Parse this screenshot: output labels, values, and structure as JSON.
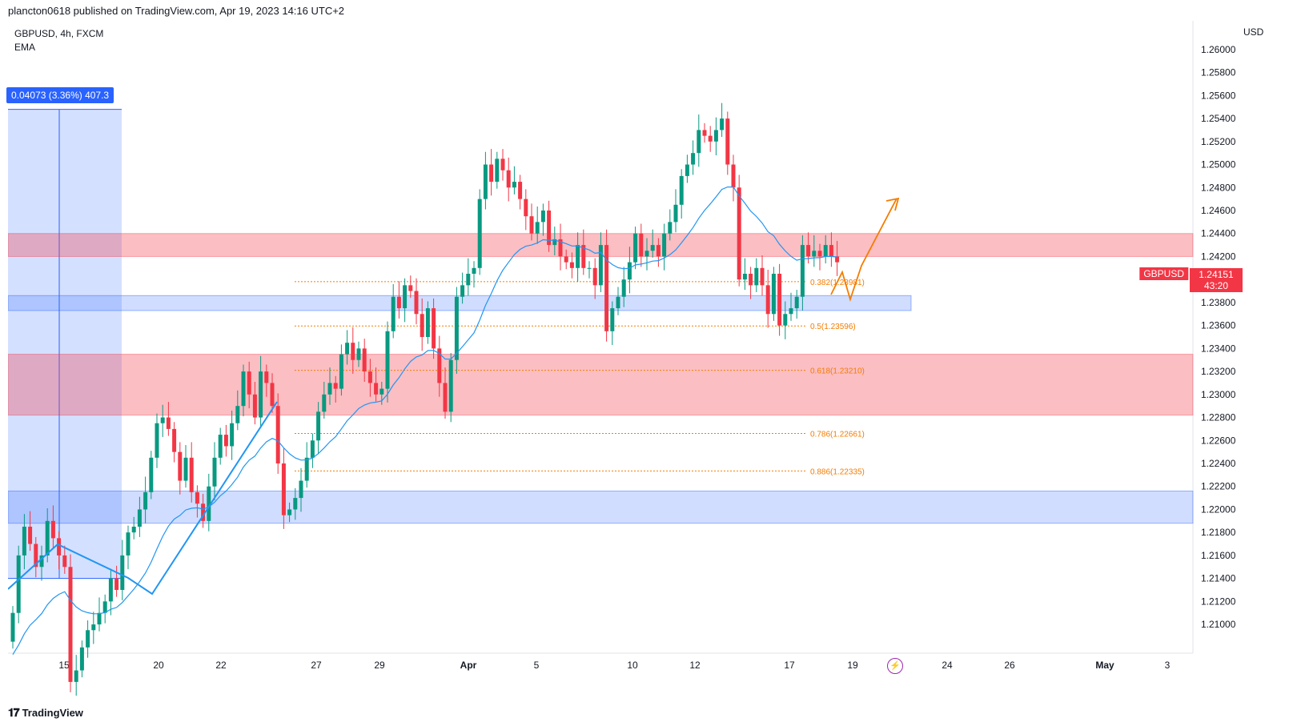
{
  "header": {
    "published_text": "plancton0618 published on TradingView.com, Apr 19, 2023 14:16 UTC+2"
  },
  "symbol": {
    "line1": "GBPUSD, 4h, FXCM",
    "line2": "EMA"
  },
  "measure": {
    "label": "0.04073 (3.36%) 407.3"
  },
  "price_axis": {
    "currency": "USD"
  },
  "last_price": {
    "symbol": "GBPUSD",
    "price": "1.24151",
    "countdown": "43:20"
  },
  "footer": {
    "brand": "TradingView"
  },
  "colors": {
    "up": "#089981",
    "down": "#f23645",
    "ema": "#2196f3",
    "resistance_zone": "#f23645",
    "support_zone": "#2962ff",
    "fib": "#f57c00",
    "projection": "#f57c00"
  },
  "icons": {
    "alert": "lightning-icon",
    "logo": "tradingview-logo-icon"
  },
  "chart_data": {
    "type": "candlestick",
    "symbol": "GBPUSD",
    "timeframe": "4h",
    "ylim": [
      1.2075,
      1.2625
    ],
    "y_ticks": [
      "1.26000",
      "1.25800",
      "1.25600",
      "1.25400",
      "1.25200",
      "1.25000",
      "1.24800",
      "1.24600",
      "1.24400",
      "1.24200",
      "1.24000",
      "1.23800",
      "1.23600",
      "1.23400",
      "1.23200",
      "1.23000",
      "1.22800",
      "1.22600",
      "1.22400",
      "1.22200",
      "1.22000",
      "1.21800",
      "1.21600",
      "1.21400",
      "1.21200",
      "1.21000"
    ],
    "x_ticks": [
      {
        "label": "15",
        "bold": false
      },
      {
        "label": "20",
        "bold": false
      },
      {
        "label": "22",
        "bold": false
      },
      {
        "label": "27",
        "bold": false
      },
      {
        "label": "29",
        "bold": false
      },
      {
        "label": "Apr",
        "bold": true
      },
      {
        "label": "5",
        "bold": false
      },
      {
        "label": "10",
        "bold": false
      },
      {
        "label": "12",
        "bold": false
      },
      {
        "label": "17",
        "bold": false
      },
      {
        "label": "19",
        "bold": false
      },
      {
        "label": "24",
        "bold": false
      },
      {
        "label": "26",
        "bold": false
      },
      {
        "label": "May",
        "bold": true
      },
      {
        "label": "3",
        "bold": false
      }
    ],
    "closes": [
      1.211,
      1.216,
      1.2185,
      1.217,
      1.215,
      1.216,
      1.219,
      1.2175,
      1.216,
      1.215,
      1.205,
      1.206,
      1.208,
      1.2095,
      1.21,
      1.211,
      1.212,
      1.214,
      1.213,
      1.216,
      1.218,
      1.2185,
      1.22,
      1.2215,
      1.2245,
      1.2275,
      1.228,
      1.227,
      1.225,
      1.2225,
      1.2245,
      1.2215,
      1.2205,
      1.219,
      1.222,
      1.2245,
      1.2265,
      1.2255,
      1.2275,
      1.229,
      1.232,
      1.23,
      1.228,
      1.232,
      1.231,
      1.229,
      1.224,
      1.2195,
      1.22,
      1.221,
      1.2225,
      1.2245,
      1.226,
      1.2285,
      1.23,
      1.231,
      1.2305,
      1.2335,
      1.2345,
      1.233,
      1.234,
      1.232,
      1.231,
      1.23,
      1.2305,
      1.2355,
      1.2385,
      1.2375,
      1.2395,
      1.239,
      1.237,
      1.235,
      1.2375,
      1.234,
      1.231,
      1.2285,
      1.233,
      1.2385,
      1.2395,
      1.2405,
      1.241,
      1.247,
      1.25,
      1.2485,
      1.2505,
      1.2495,
      1.248,
      1.2485,
      1.247,
      1.2455,
      1.244,
      1.245,
      1.246,
      1.243,
      1.2435,
      1.242,
      1.2415,
      1.241,
      1.243,
      1.241,
      1.241,
      1.2395,
      1.243,
      1.2355,
      1.2375,
      1.2385,
      1.24,
      1.2415,
      1.244,
      1.242,
      1.2425,
      1.243,
      1.242,
      1.244,
      1.245,
      1.2465,
      1.249,
      1.25,
      1.251,
      1.253,
      1.2525,
      1.252,
      1.253,
      1.254,
      1.25,
      1.248,
      1.24,
      1.2405,
      1.2395,
      1.241,
      1.2395,
      1.237,
      1.2405,
      1.236,
      1.237,
      1.2375,
      1.2385,
      1.243,
      1.242,
      1.2425,
      1.242,
      1.243,
      1.242,
      1.2415
    ],
    "ema_line_in_legend": "EMA",
    "zones": [
      {
        "kind": "resistance",
        "top": 1.244,
        "bottom": 1.242
      },
      {
        "kind": "support",
        "top": 1.2386,
        "bottom": 1.2373
      },
      {
        "kind": "resistance",
        "top": 1.2335,
        "bottom": 1.2282
      },
      {
        "kind": "support",
        "top": 1.2216,
        "bottom": 1.2188
      }
    ],
    "fib_levels": [
      {
        "label": "0.382(1.23981)",
        "value": 1.23981
      },
      {
        "label": "0.5(1.23596)",
        "value": 1.23596
      },
      {
        "label": "0.618(1.23210)",
        "value": 1.2321
      },
      {
        "label": "0.786(1.22661)",
        "value": 1.22661
      },
      {
        "label": "0.886(1.22335)",
        "value": 1.22335
      }
    ],
    "measure_box": {
      "label": "0.04073 (3.36%) 407.3",
      "from": 1.214,
      "to": 1.2548
    }
  }
}
